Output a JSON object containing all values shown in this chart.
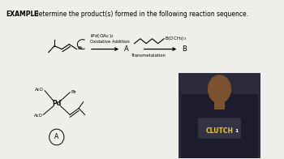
{
  "bg_color": "#f0eeea",
  "title_bold": "EXAMPLE",
  "title_normal": ": Determine the product(s) formed in the following reaction sequence.",
  "title_fontsize": 5.5,
  "step1_reagent": "iPd(OAc)₂",
  "step1_label": "Oxidative Addition",
  "step2_reagent": "B(OCH₃)₃",
  "step2_label": "Transmetalation",
  "clutch_color": "#f5c518",
  "shirt_color": "#1c1c2e",
  "skin_color": "#7a5230",
  "bg_person": "#2a2a3a"
}
